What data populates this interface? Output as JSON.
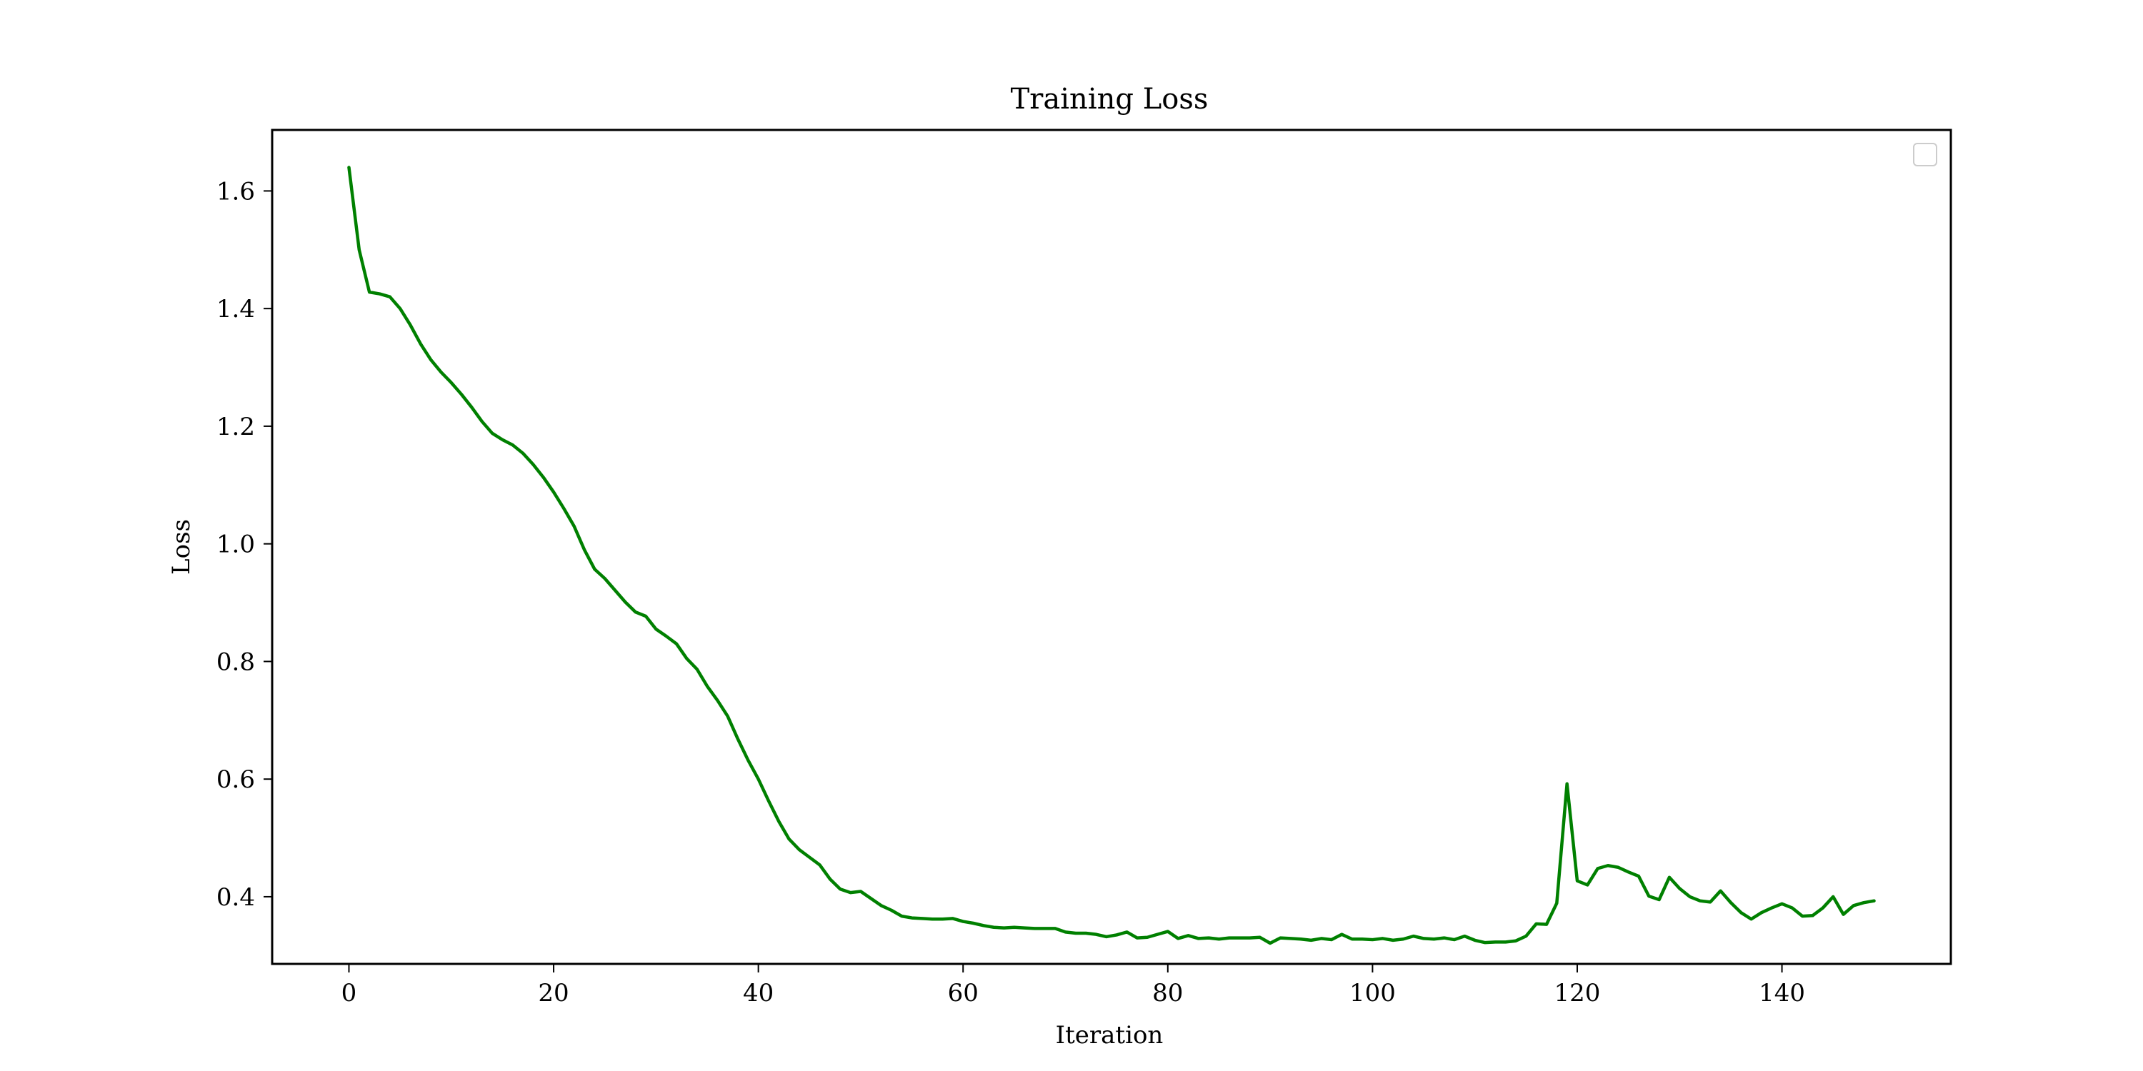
{
  "chart_data": {
    "type": "line",
    "title": "Training Loss",
    "xlabel": "Iteration",
    "ylabel": "Loss",
    "xlim": [
      -7.5,
      156.5
    ],
    "ylim": [
      0.2858,
      1.7037
    ],
    "xticks": [
      0,
      20,
      40,
      60,
      80,
      100,
      120,
      140
    ],
    "yticks": [
      0.4,
      0.6,
      0.8,
      1.0,
      1.2,
      1.4,
      1.6
    ],
    "xtick_labels": [
      "0",
      "20",
      "40",
      "60",
      "80",
      "100",
      "120",
      "140"
    ],
    "ytick_labels": [
      "0.4",
      "0.6",
      "0.8",
      "1.0",
      "1.2",
      "1.4",
      "1.6"
    ],
    "grid": false,
    "legend": "top-right",
    "series": [
      {
        "color": "#008000",
        "x": [
          0,
          1,
          2,
          3,
          4,
          5,
          6,
          7,
          8,
          9,
          10,
          11,
          12,
          13,
          14,
          15,
          16,
          17,
          18,
          19,
          20,
          21,
          22,
          23,
          24,
          25,
          26,
          27,
          28,
          29,
          30,
          31,
          32,
          33,
          34,
          35,
          36,
          37,
          38,
          39,
          40,
          41,
          42,
          43,
          44,
          45,
          46,
          47,
          48,
          49,
          50,
          51,
          52,
          53,
          54,
          55,
          56,
          57,
          58,
          59,
          60,
          61,
          62,
          63,
          64,
          65,
          66,
          67,
          68,
          69,
          70,
          71,
          72,
          73,
          74,
          75,
          76,
          77,
          78,
          79,
          80,
          81,
          82,
          83,
          84,
          85,
          86,
          87,
          88,
          89,
          90,
          91,
          92,
          93,
          94,
          95,
          96,
          97,
          98,
          99,
          100,
          101,
          102,
          103,
          104,
          105,
          106,
          107,
          108,
          109,
          110,
          111,
          112,
          113,
          114,
          115,
          116,
          117,
          118,
          119,
          120,
          121,
          122,
          123,
          124,
          125,
          126,
          127,
          128,
          129,
          130,
          131,
          132,
          133,
          134,
          135,
          136,
          137,
          138,
          139,
          140,
          141,
          142,
          143,
          144,
          145,
          146,
          147,
          148,
          149
        ],
        "y": [
          1.64,
          1.5,
          1.428,
          1.425,
          1.42,
          1.4,
          1.372,
          1.34,
          1.313,
          1.292,
          1.274,
          1.254,
          1.232,
          1.208,
          1.188,
          1.177,
          1.168,
          1.154,
          1.135,
          1.113,
          1.088,
          1.06,
          1.03,
          0.99,
          0.957,
          0.941,
          0.921,
          0.901,
          0.884,
          0.877,
          0.855,
          0.843,
          0.83,
          0.805,
          0.787,
          0.758,
          0.734,
          0.707,
          0.668,
          0.632,
          0.6,
          0.563,
          0.528,
          0.498,
          0.48,
          0.467,
          0.454,
          0.43,
          0.413,
          0.407,
          0.409,
          0.397,
          0.385,
          0.377,
          0.367,
          0.364,
          0.363,
          0.362,
          0.362,
          0.363,
          0.358,
          0.355,
          0.351,
          0.348,
          0.347,
          0.348,
          0.347,
          0.346,
          0.346,
          0.346,
          0.34,
          0.338,
          0.338,
          0.336,
          0.332,
          0.335,
          0.34,
          0.33,
          0.331,
          0.336,
          0.341,
          0.329,
          0.334,
          0.329,
          0.33,
          0.328,
          0.33,
          0.33,
          0.33,
          0.331,
          0.321,
          0.33,
          0.329,
          0.328,
          0.326,
          0.329,
          0.327,
          0.336,
          0.328,
          0.328,
          0.327,
          0.329,
          0.326,
          0.328,
          0.333,
          0.329,
          0.328,
          0.33,
          0.327,
          0.333,
          0.326,
          0.322,
          0.323,
          0.323,
          0.325,
          0.333,
          0.354,
          0.353,
          0.389,
          0.592,
          0.427,
          0.42,
          0.448,
          0.453,
          0.45,
          0.442,
          0.435,
          0.401,
          0.395,
          0.433,
          0.414,
          0.4,
          0.393,
          0.391,
          0.41,
          0.39,
          0.373,
          0.362,
          0.373,
          0.381,
          0.388,
          0.381,
          0.367,
          0.368,
          0.381,
          0.4,
          0.37,
          0.385,
          0.39,
          0.393
        ]
      }
    ]
  }
}
